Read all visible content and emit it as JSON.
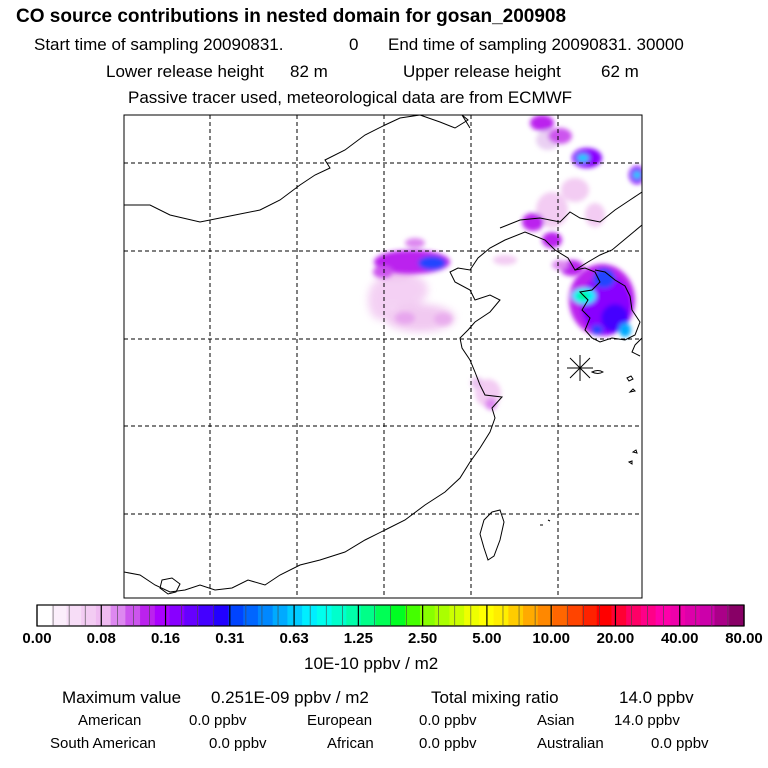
{
  "header": {
    "title": "CO  source contributions in nested domain for gosan_200908",
    "start_label": "Start time of sampling 20090831.",
    "start_value": "0",
    "end_label": "End time of sampling 20090831. 30000",
    "lower_label": "Lower release height",
    "lower_value": "82 m",
    "upper_label": "Upper release height",
    "upper_value": "62 m",
    "note": "Passive tracer used, meteorological data are from ECMWF"
  },
  "colorbar": {
    "labels": [
      "0.00",
      "0.08",
      "0.16",
      "0.31",
      "0.63",
      "1.25",
      "2.50",
      "5.00",
      "10.00",
      "20.00",
      "40.00",
      "80.00"
    ],
    "colors": [
      "#ffffff",
      "#fbeefb",
      "#f7ddf7",
      "#f3ccf3",
      "#efbbf1",
      "#dd88f0",
      "#cc55ee",
      "#bb22ee",
      "#aa00ff",
      "#8800ff",
      "#6600ff",
      "#4400ff",
      "#2200ff",
      "#0044ff",
      "#0066ff",
      "#0088ff",
      "#00aaff",
      "#00ccff",
      "#00eeff",
      "#00ffee",
      "#00ffcc",
      "#00ffaa",
      "#00ff88",
      "#00ff55",
      "#00ff22",
      "#44ff00",
      "#88ff00",
      "#aaff00",
      "#ccff00",
      "#eeff00",
      "#ffff00",
      "#ffee00",
      "#ffcc00",
      "#ffaa00",
      "#ff8800",
      "#ff6600",
      "#ff4400",
      "#ff2200",
      "#ff0000",
      "#ff0033",
      "#ff0066",
      "#ff0088",
      "#ff00aa",
      "#ee00aa",
      "#dd00aa",
      "#cc00aa",
      "#aa0088",
      "#880066"
    ],
    "unit": "10E-10 ppbv / m2"
  },
  "summary": {
    "max_label": "Maximum value",
    "max_value": "0.251E-09 ppbv / m2",
    "total_label": "Total mixing ratio",
    "total_value": "14.0 ppbv",
    "regions": [
      {
        "name": "American",
        "value": "0.0 ppbv"
      },
      {
        "name": "European",
        "value": "0.0 ppbv"
      },
      {
        "name": "Asian",
        "value": "14.0 ppbv"
      },
      {
        "name": "South American",
        "value": "0.0 ppbv"
      },
      {
        "name": "African",
        "value": "0.0 ppbv"
      },
      {
        "name": "Australian",
        "value": "0.0 ppbv"
      }
    ]
  },
  "colors": {
    "light_pink": "#f3ccf3",
    "violet": "#bb22ee",
    "deep_violet": "#8800ff",
    "blue": "#2244ff",
    "cyan": "#00eeff",
    "green": "#00ff88",
    "yellow": "#ffff00"
  }
}
